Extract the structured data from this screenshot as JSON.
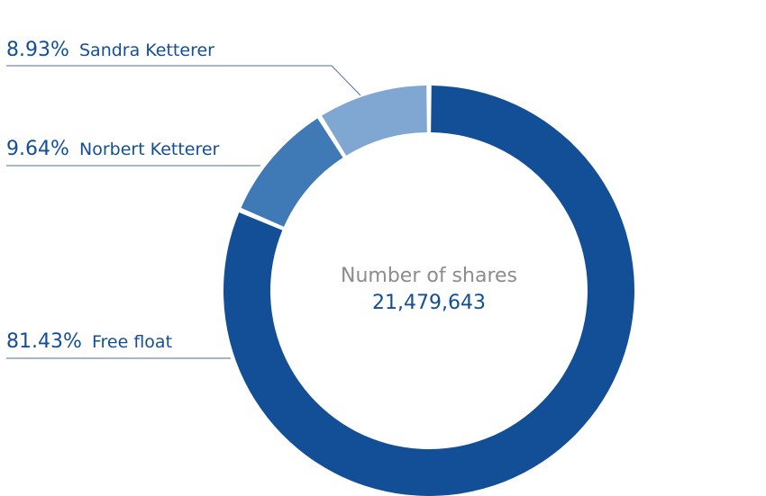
{
  "chart_data": {
    "type": "pie",
    "variant": "donut",
    "center_label": "Number of shares",
    "center_value": "21,479,643",
    "slices": [
      {
        "label": "Free float",
        "percent_text": "81.43%",
        "value": 81.43,
        "color": "#134f96"
      },
      {
        "label": "Norbert Ketterer",
        "percent_text": "9.64%",
        "value": 9.64,
        "color": "#3f7ab7"
      },
      {
        "label": "Sandra Ketterer",
        "percent_text": "8.93%",
        "value": 8.93,
        "color": "#7fa7d1"
      }
    ],
    "label_color": "#134f96",
    "center_label_color": "#8c8c8c",
    "center_value_color": "#134f96",
    "leader_line_color": "#4a6fa5",
    "legend": "left"
  }
}
